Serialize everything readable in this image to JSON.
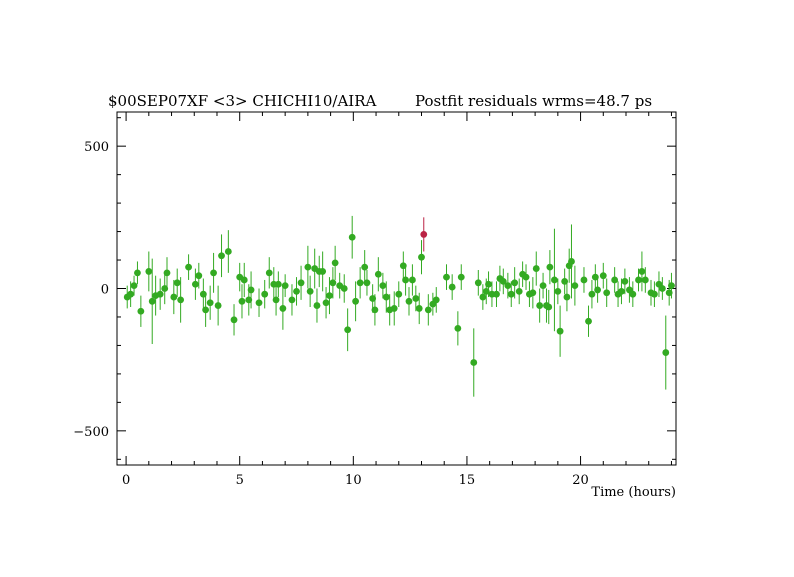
{
  "chart_data": {
    "type": "scatter",
    "title_left": "$00SEP07XF <3> CHICHI10/AIRA",
    "title_right": "Postfit residuals wrms=48.7  ps",
    "xlabel": "Time (hours)",
    "ylabel": "",
    "xlim": [
      -0.4,
      24.2
    ],
    "ylim": [
      -620,
      620
    ],
    "x_ticks": [
      0,
      5,
      10,
      15,
      20
    ],
    "x_tick_labels": [
      "0",
      "5",
      "10",
      "15",
      "20"
    ],
    "y_ticks": [
      -500,
      0,
      500
    ],
    "y_tick_labels": [
      "−500",
      "0",
      "500"
    ],
    "grid": false,
    "colors": {
      "good": "#33aa22",
      "flagged": "#bb2244",
      "axes": "#000000"
    },
    "series": [
      {
        "status": "good",
        "points": [
          [
            0.05,
            -30,
            40
          ],
          [
            0.2,
            -20,
            45
          ],
          [
            0.35,
            10,
            35
          ],
          [
            0.5,
            55,
            40
          ],
          [
            0.65,
            -80,
            55
          ],
          [
            1.0,
            60,
            70
          ],
          [
            1.15,
            -45,
            150
          ],
          [
            1.3,
            -25,
            70
          ],
          [
            1.5,
            -20,
            55
          ],
          [
            1.7,
            0,
            55
          ],
          [
            1.8,
            55,
            55
          ],
          [
            2.1,
            -30,
            60
          ],
          [
            2.25,
            20,
            50
          ],
          [
            2.4,
            -40,
            80
          ],
          [
            2.75,
            75,
            45
          ],
          [
            3.05,
            15,
            55
          ],
          [
            3.2,
            45,
            45
          ],
          [
            3.4,
            -20,
            55
          ],
          [
            3.5,
            -75,
            60
          ],
          [
            3.7,
            -50,
            60
          ],
          [
            3.85,
            55,
            70
          ],
          [
            4.05,
            -60,
            70
          ],
          [
            4.2,
            115,
            75
          ],
          [
            4.5,
            130,
            75
          ],
          [
            4.75,
            -110,
            55
          ],
          [
            5.0,
            40,
            50
          ],
          [
            5.1,
            -45,
            60
          ],
          [
            5.2,
            30,
            60
          ],
          [
            5.4,
            -40,
            55
          ],
          [
            5.5,
            -5,
            65
          ],
          [
            5.85,
            -50,
            50
          ],
          [
            6.1,
            -20,
            50
          ],
          [
            6.3,
            55,
            55
          ],
          [
            6.5,
            15,
            60
          ],
          [
            6.6,
            -40,
            55
          ],
          [
            6.7,
            15,
            45
          ],
          [
            6.9,
            -70,
            75
          ],
          [
            7.0,
            10,
            40
          ],
          [
            7.3,
            -40,
            55
          ],
          [
            7.5,
            -10,
            50
          ],
          [
            7.7,
            20,
            60
          ],
          [
            8.0,
            75,
            75
          ],
          [
            8.1,
            -10,
            55
          ],
          [
            8.3,
            70,
            70
          ],
          [
            8.4,
            -60,
            60
          ],
          [
            8.5,
            60,
            55
          ],
          [
            8.65,
            60,
            70
          ],
          [
            8.8,
            -50,
            55
          ],
          [
            8.95,
            -25,
            65
          ],
          [
            9.1,
            20,
            55
          ],
          [
            9.2,
            90,
            60
          ],
          [
            9.4,
            10,
            45
          ],
          [
            9.6,
            0,
            50
          ],
          [
            9.75,
            -145,
            75
          ],
          [
            9.95,
            180,
            75
          ],
          [
            10.1,
            -45,
            70
          ],
          [
            10.3,
            20,
            55
          ],
          [
            10.5,
            75,
            60
          ],
          [
            10.6,
            20,
            45
          ],
          [
            10.85,
            -35,
            50
          ],
          [
            10.95,
            -75,
            55
          ],
          [
            11.1,
            50,
            60
          ],
          [
            11.3,
            10,
            45
          ],
          [
            11.45,
            -30,
            55
          ],
          [
            11.6,
            -75,
            55
          ],
          [
            11.8,
            -70,
            60
          ],
          [
            12.0,
            -20,
            45
          ],
          [
            12.2,
            80,
            50
          ],
          [
            12.3,
            30,
            55
          ],
          [
            12.45,
            -45,
            50
          ],
          [
            12.6,
            30,
            55
          ],
          [
            12.75,
            -35,
            45
          ],
          [
            12.9,
            -70,
            55
          ],
          [
            13.0,
            110,
            60
          ],
          [
            13.3,
            -75,
            55
          ],
          [
            13.5,
            -55,
            40
          ],
          [
            13.65,
            -40,
            45
          ],
          [
            14.1,
            40,
            45
          ],
          [
            14.35,
            5,
            45
          ],
          [
            14.6,
            -140,
            60
          ],
          [
            14.75,
            40,
            45
          ],
          [
            15.3,
            -260,
            120
          ],
          [
            15.5,
            20,
            45
          ],
          [
            15.7,
            -30,
            45
          ],
          [
            15.85,
            -10,
            45
          ],
          [
            15.95,
            15,
            45
          ],
          [
            16.1,
            -20,
            45
          ],
          [
            16.3,
            -20,
            45
          ],
          [
            16.45,
            35,
            45
          ],
          [
            16.6,
            25,
            45
          ],
          [
            16.8,
            10,
            45
          ],
          [
            16.95,
            -20,
            45
          ],
          [
            17.1,
            20,
            55
          ],
          [
            17.3,
            -10,
            45
          ],
          [
            17.45,
            50,
            45
          ],
          [
            17.6,
            40,
            45
          ],
          [
            17.75,
            -20,
            45
          ],
          [
            17.9,
            -15,
            55
          ],
          [
            18.05,
            70,
            60
          ],
          [
            18.2,
            -60,
            60
          ],
          [
            18.35,
            10,
            45
          ],
          [
            18.5,
            -60,
            60
          ],
          [
            18.6,
            -65,
            60
          ],
          [
            18.65,
            75,
            60
          ],
          [
            18.85,
            30,
            180
          ],
          [
            19.0,
            -10,
            45
          ],
          [
            19.1,
            -150,
            90
          ],
          [
            19.3,
            25,
            45
          ],
          [
            19.4,
            -30,
            50
          ],
          [
            19.5,
            80,
            60
          ],
          [
            19.6,
            95,
            130
          ],
          [
            19.75,
            10,
            70
          ],
          [
            20.15,
            30,
            45
          ],
          [
            20.35,
            -115,
            55
          ],
          [
            20.5,
            -20,
            50
          ],
          [
            20.65,
            40,
            45
          ],
          [
            20.75,
            -5,
            45
          ],
          [
            21.0,
            45,
            45
          ],
          [
            21.15,
            -15,
            50
          ],
          [
            21.5,
            30,
            45
          ],
          [
            21.65,
            -20,
            45
          ],
          [
            21.8,
            -10,
            45
          ],
          [
            21.95,
            25,
            45
          ],
          [
            22.15,
            -5,
            45
          ],
          [
            22.3,
            -20,
            45
          ],
          [
            22.55,
            30,
            40
          ],
          [
            22.7,
            60,
            70
          ],
          [
            22.85,
            30,
            45
          ],
          [
            23.1,
            -15,
            45
          ],
          [
            23.25,
            -20,
            45
          ],
          [
            23.45,
            15,
            45
          ],
          [
            23.6,
            0,
            40
          ],
          [
            23.75,
            -225,
            130
          ],
          [
            23.9,
            -15,
            45
          ],
          [
            24.0,
            10,
            45
          ]
        ]
      },
      {
        "status": "flagged",
        "points": [
          [
            13.1,
            190,
            60
          ]
        ]
      }
    ]
  }
}
